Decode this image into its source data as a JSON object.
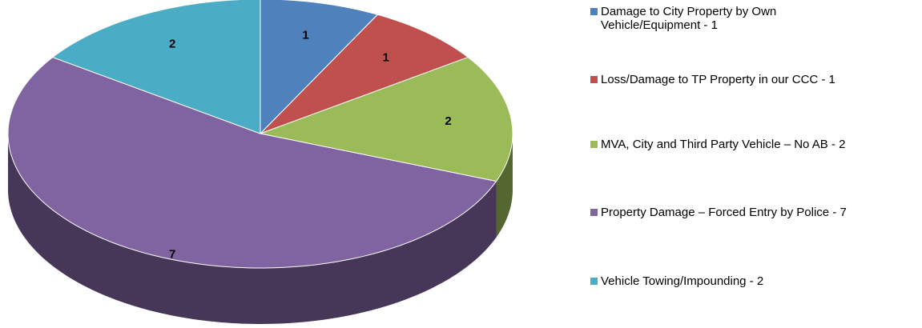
{
  "chart_data": {
    "type": "pie3d",
    "categories": [
      "Damage to City Property by Own Vehicle/Equipment - 1",
      "Loss/Damage to TP Property in our CCC - 1",
      "MVA, City and Third Party Vehicle – No AB - 2",
      "Property Damage – Forced Entry by Police - 7",
      "Vehicle Towing/Impounding - 2"
    ],
    "values": [
      1,
      1,
      2,
      7,
      2
    ],
    "colors": [
      "#4f81bd",
      "#c0504d",
      "#9bbb59",
      "#8064a2",
      "#4bacc6"
    ],
    "legend": "right"
  }
}
